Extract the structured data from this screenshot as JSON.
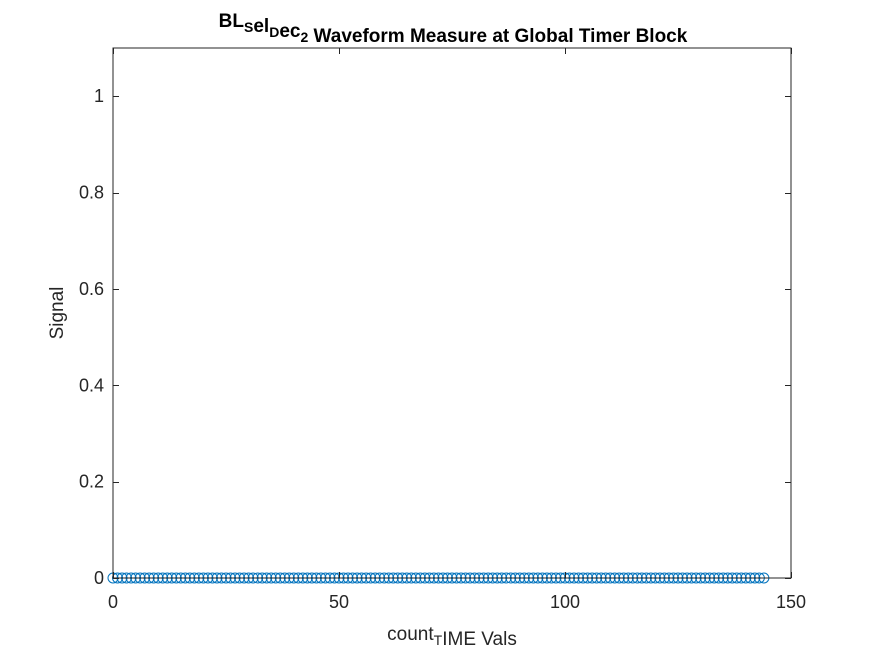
{
  "chart_data": {
    "type": "scatter",
    "title_parts": [
      {
        "text": "BL",
        "sub": false
      },
      {
        "text": "S",
        "sub": true
      },
      {
        "text": "el",
        "sub": false
      },
      {
        "text": "D",
        "sub": true
      },
      {
        "text": "ec",
        "sub": false
      },
      {
        "text": "2",
        "sub": true
      },
      {
        "text": " Waveform Measure at Global Timer Block",
        "sub": false
      }
    ],
    "xlabel_parts": [
      {
        "text": "count",
        "sub": false
      },
      {
        "text": "T",
        "sub": true
      },
      {
        "text": "IME Vals",
        "sub": false
      }
    ],
    "ylabel": "Signal",
    "xlim": [
      0,
      150
    ],
    "ylim": [
      0,
      1.1
    ],
    "x_ticks": [
      0,
      50,
      100,
      150
    ],
    "x_tick_labels": [
      "0",
      "50",
      "100",
      "150"
    ],
    "y_ticks": [
      0,
      0.2,
      0.4,
      0.6,
      0.8,
      1
    ],
    "y_tick_labels": [
      "0",
      "0.2",
      "0.4",
      "0.6",
      "0.8",
      "1"
    ],
    "marker": "circle",
    "marker_color": "#0072BD",
    "grid": false,
    "box": true,
    "series": [
      {
        "x_start": 0,
        "x_end": 144,
        "x_step": 1,
        "y_constant": 0
      }
    ]
  }
}
